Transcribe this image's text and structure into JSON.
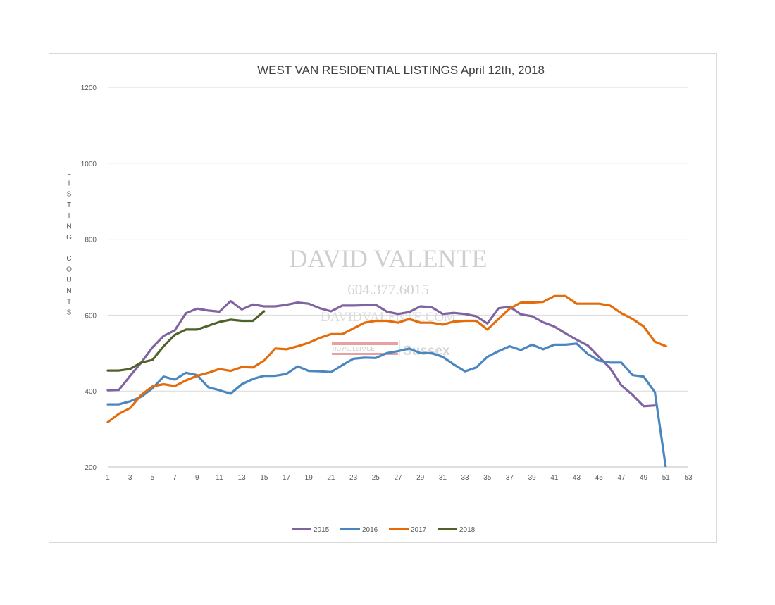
{
  "chart_data": {
    "type": "line",
    "title": "WEST VAN RESIDENTIAL LISTINGS April 12th, 2018",
    "ylabel": "LISTING COUNTS",
    "xlabel": "",
    "xlim": [
      1,
      53
    ],
    "ylim": [
      200,
      1200
    ],
    "x_ticks": [
      1,
      3,
      5,
      7,
      9,
      11,
      13,
      15,
      17,
      19,
      21,
      23,
      25,
      27,
      29,
      31,
      33,
      35,
      37,
      39,
      41,
      43,
      45,
      47,
      49,
      51,
      53
    ],
    "y_ticks": [
      200,
      400,
      600,
      800,
      1000,
      1200
    ],
    "grid": true,
    "legend_position": "bottom",
    "series": [
      {
        "name": "2015",
        "color": "#8064A2",
        "x": [
          1,
          2,
          3,
          4,
          5,
          6,
          7,
          8,
          9,
          10,
          11,
          12,
          13,
          14,
          15,
          16,
          17,
          18,
          19,
          20,
          21,
          22,
          23,
          24,
          25,
          26,
          27,
          28,
          29,
          30,
          31,
          32,
          33,
          34,
          35,
          36,
          37,
          38,
          39,
          40,
          41,
          42,
          43,
          44,
          45,
          46,
          47,
          48,
          49,
          50
        ],
        "values": [
          402,
          403,
          440,
          475,
          515,
          545,
          560,
          605,
          617,
          612,
          609,
          637,
          615,
          628,
          623,
          623,
          627,
          633,
          630,
          618,
          610,
          625,
          625,
          626,
          627,
          609,
          603,
          608,
          623,
          621,
          603,
          606,
          603,
          597,
          578,
          618,
          622,
          602,
          597,
          581,
          570,
          552,
          535,
          520,
          490,
          460,
          415,
          390,
          360,
          362
        ]
      },
      {
        "name": "2016",
        "color": "#4A86C0",
        "x": [
          1,
          2,
          3,
          4,
          5,
          6,
          7,
          8,
          9,
          10,
          11,
          12,
          13,
          14,
          15,
          16,
          17,
          18,
          19,
          20,
          21,
          22,
          23,
          24,
          25,
          26,
          27,
          28,
          29,
          30,
          31,
          32,
          33,
          34,
          35,
          36,
          37,
          38,
          39,
          40,
          41,
          42,
          43,
          44,
          45,
          46,
          47,
          48,
          49,
          50,
          51
        ],
        "values": [
          365,
          365,
          373,
          385,
          407,
          438,
          430,
          448,
          442,
          410,
          402,
          393,
          418,
          432,
          440,
          440,
          445,
          465,
          453,
          452,
          450,
          468,
          485,
          488,
          487,
          500,
          505,
          512,
          500,
          500,
          490,
          470,
          452,
          462,
          490,
          505,
          518,
          508,
          522,
          510,
          522,
          522,
          525,
          497,
          480,
          475,
          475,
          442,
          438,
          397,
          195
        ]
      },
      {
        "name": "2017",
        "color": "#E46C0A",
        "x": [
          1,
          2,
          3,
          4,
          5,
          6,
          7,
          8,
          9,
          10,
          11,
          12,
          13,
          14,
          15,
          16,
          17,
          18,
          19,
          20,
          21,
          22,
          23,
          24,
          25,
          26,
          27,
          28,
          29,
          30,
          31,
          32,
          33,
          34,
          35,
          36,
          37,
          38,
          39,
          40,
          41,
          42,
          43,
          44,
          45,
          46,
          47,
          48,
          49,
          50,
          51
        ],
        "values": [
          318,
          340,
          355,
          390,
          412,
          418,
          413,
          428,
          440,
          448,
          458,
          453,
          463,
          462,
          480,
          512,
          510,
          518,
          527,
          540,
          550,
          550,
          565,
          580,
          585,
          585,
          580,
          590,
          580,
          580,
          575,
          583,
          585,
          585,
          562,
          590,
          617,
          633,
          633,
          635,
          650,
          650,
          630,
          630,
          630,
          625,
          605,
          590,
          570,
          530,
          518
        ]
      },
      {
        "name": "2018",
        "color": "#4F6228",
        "x": [
          1,
          2,
          3,
          4,
          5,
          6,
          7,
          8,
          9,
          10,
          11,
          12,
          13,
          14,
          15
        ],
        "values": [
          454,
          454,
          458,
          475,
          482,
          518,
          548,
          562,
          562,
          572,
          582,
          588,
          585,
          585,
          610
        ]
      }
    ]
  },
  "watermark": {
    "name": "DAVID VALENTE",
    "phone": "604.377.6015",
    "website": "DAVIDVALENTE.COM",
    "brand_small": "ROYAL LEPAGE",
    "brand_big": "Sussex",
    "brand_color": "#E8A0A0"
  }
}
